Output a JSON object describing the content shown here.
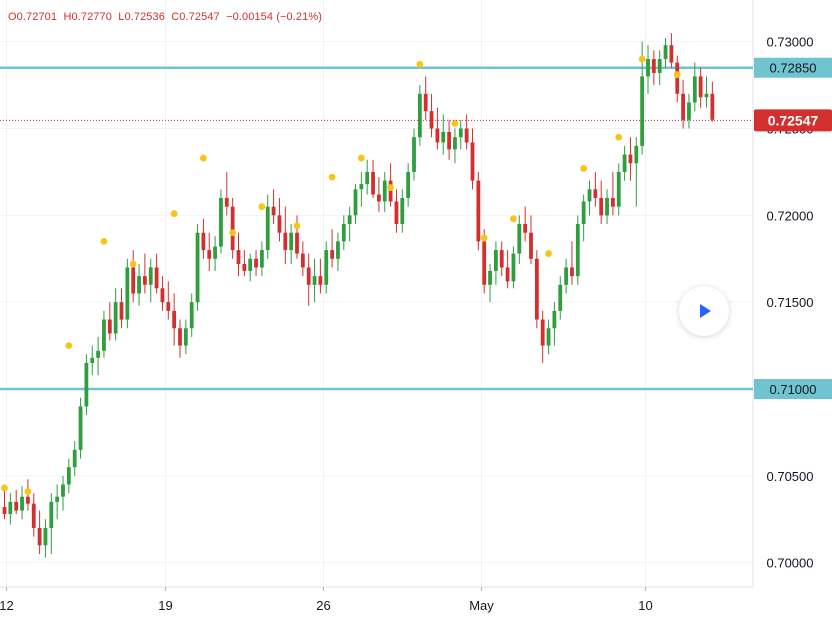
{
  "ohlc": {
    "open": "O0.72701",
    "high": "H0.72770",
    "low": "L0.72536",
    "close": "C0.72547",
    "change": "−0.00154 (−0.21%)"
  },
  "colors": {
    "up": "#2e9e3e",
    "down": "#d32f2f",
    "level_line": "#6fc4cf",
    "marker": "#f5c518",
    "price_badge": "#d32f2f",
    "grid": "#f0f3f5"
  },
  "play_button": {
    "icon": "play-icon"
  },
  "chart_data": {
    "type": "candlestick",
    "title": "",
    "x_ticks": [
      "12",
      "19",
      "26",
      "May",
      "10"
    ],
    "y_ticks": [
      "0.73000",
      "0.72500",
      "0.72000",
      "0.71500",
      "0.71000",
      "0.70500",
      "0.70000"
    ],
    "ylim": [
      0.6986,
      0.7324
    ],
    "grid": true,
    "horizontal_levels": [
      {
        "value": 0.7285,
        "label": "0.72850"
      },
      {
        "value": 0.71,
        "label": "0.71000"
      }
    ],
    "last_price": {
      "value": 0.72547,
      "label": "0.72547"
    },
    "candles": [
      [
        0.7032,
        0.7045,
        0.7025,
        0.7028
      ],
      [
        0.7028,
        0.704,
        0.7022,
        0.7035
      ],
      [
        0.7035,
        0.7042,
        0.7028,
        0.703
      ],
      [
        0.703,
        0.7044,
        0.7025,
        0.7038
      ],
      [
        0.7038,
        0.7048,
        0.703,
        0.7034
      ],
      [
        0.7034,
        0.704,
        0.7015,
        0.702
      ],
      [
        0.702,
        0.703,
        0.7005,
        0.701
      ],
      [
        0.701,
        0.7025,
        0.7003,
        0.702
      ],
      [
        0.702,
        0.704,
        0.7005,
        0.7035
      ],
      [
        0.7035,
        0.7045,
        0.7025,
        0.7038
      ],
      [
        0.7038,
        0.705,
        0.703,
        0.7045
      ],
      [
        0.7045,
        0.706,
        0.704,
        0.7055
      ],
      [
        0.7055,
        0.707,
        0.705,
        0.7065
      ],
      [
        0.7065,
        0.7095,
        0.706,
        0.709
      ],
      [
        0.709,
        0.712,
        0.7085,
        0.7115
      ],
      [
        0.7115,
        0.7125,
        0.7108,
        0.7118
      ],
      [
        0.7118,
        0.713,
        0.7108,
        0.7122
      ],
      [
        0.7122,
        0.7145,
        0.7118,
        0.714
      ],
      [
        0.714,
        0.715,
        0.7128,
        0.7132
      ],
      [
        0.7132,
        0.7158,
        0.7128,
        0.715
      ],
      [
        0.715,
        0.7158,
        0.7135,
        0.714
      ],
      [
        0.714,
        0.7175,
        0.7135,
        0.717
      ],
      [
        0.717,
        0.718,
        0.715,
        0.7155
      ],
      [
        0.7155,
        0.7172,
        0.7148,
        0.7165
      ],
      [
        0.7165,
        0.7178,
        0.7155,
        0.716
      ],
      [
        0.716,
        0.7175,
        0.715,
        0.717
      ],
      [
        0.717,
        0.7178,
        0.7155,
        0.7158
      ],
      [
        0.7158,
        0.7165,
        0.7145,
        0.715
      ],
      [
        0.715,
        0.7162,
        0.714,
        0.7145
      ],
      [
        0.7145,
        0.7155,
        0.7125,
        0.7135
      ],
      [
        0.7135,
        0.714,
        0.7118,
        0.7125
      ],
      [
        0.7125,
        0.714,
        0.712,
        0.7135
      ],
      [
        0.7135,
        0.7155,
        0.713,
        0.715
      ],
      [
        0.715,
        0.7195,
        0.7145,
        0.719
      ],
      [
        0.719,
        0.7198,
        0.7175,
        0.718
      ],
      [
        0.718,
        0.719,
        0.7168,
        0.7175
      ],
      [
        0.7175,
        0.7188,
        0.7168,
        0.7182
      ],
      [
        0.7182,
        0.7215,
        0.7178,
        0.721
      ],
      [
        0.721,
        0.7225,
        0.72,
        0.7205
      ],
      [
        0.7205,
        0.721,
        0.7175,
        0.718
      ],
      [
        0.718,
        0.719,
        0.7165,
        0.7172
      ],
      [
        0.7172,
        0.718,
        0.7165,
        0.7168
      ],
      [
        0.7168,
        0.7178,
        0.7162,
        0.7175
      ],
      [
        0.7175,
        0.718,
        0.7165,
        0.717
      ],
      [
        0.717,
        0.7185,
        0.7165,
        0.718
      ],
      [
        0.718,
        0.7212,
        0.7175,
        0.7205
      ],
      [
        0.7205,
        0.7215,
        0.7195,
        0.72
      ],
      [
        0.72,
        0.721,
        0.7185,
        0.719
      ],
      [
        0.719,
        0.7205,
        0.7172,
        0.718
      ],
      [
        0.718,
        0.7195,
        0.7172,
        0.719
      ],
      [
        0.719,
        0.72,
        0.7175,
        0.7178
      ],
      [
        0.7178,
        0.7185,
        0.7165,
        0.717
      ],
      [
        0.717,
        0.7178,
        0.7148,
        0.716
      ],
      [
        0.716,
        0.7175,
        0.715,
        0.7165
      ],
      [
        0.7165,
        0.7175,
        0.7155,
        0.716
      ],
      [
        0.716,
        0.7185,
        0.7155,
        0.718
      ],
      [
        0.718,
        0.7192,
        0.717,
        0.7175
      ],
      [
        0.7175,
        0.719,
        0.7168,
        0.7185
      ],
      [
        0.7185,
        0.72,
        0.718,
        0.7195
      ],
      [
        0.7195,
        0.7205,
        0.7185,
        0.72
      ],
      [
        0.72,
        0.7218,
        0.7195,
        0.7215
      ],
      [
        0.7215,
        0.7225,
        0.7205,
        0.7218
      ],
      [
        0.7218,
        0.7232,
        0.7212,
        0.7225
      ],
      [
        0.7225,
        0.7232,
        0.721,
        0.7212
      ],
      [
        0.7212,
        0.7222,
        0.7202,
        0.7208
      ],
      [
        0.7208,
        0.7225,
        0.7202,
        0.722
      ],
      [
        0.722,
        0.723,
        0.7205,
        0.7208
      ],
      [
        0.7208,
        0.7215,
        0.719,
        0.7195
      ],
      [
        0.7195,
        0.7215,
        0.719,
        0.721
      ],
      [
        0.721,
        0.723,
        0.7205,
        0.7225
      ],
      [
        0.7225,
        0.725,
        0.722,
        0.7245
      ],
      [
        0.7245,
        0.7275,
        0.724,
        0.727
      ],
      [
        0.727,
        0.728,
        0.7255,
        0.726
      ],
      [
        0.726,
        0.727,
        0.7245,
        0.725
      ],
      [
        0.725,
        0.7262,
        0.7238,
        0.7242
      ],
      [
        0.7242,
        0.7258,
        0.7235,
        0.7248
      ],
      [
        0.7248,
        0.7255,
        0.7232,
        0.7238
      ],
      [
        0.7238,
        0.725,
        0.723,
        0.7245
      ],
      [
        0.7245,
        0.7255,
        0.7238,
        0.725
      ],
      [
        0.725,
        0.7258,
        0.7238,
        0.7242
      ],
      [
        0.7242,
        0.725,
        0.7215,
        0.722
      ],
      [
        0.722,
        0.7225,
        0.718,
        0.7185
      ],
      [
        0.7185,
        0.7192,
        0.7155,
        0.716
      ],
      [
        0.716,
        0.7172,
        0.715,
        0.7168
      ],
      [
        0.7168,
        0.7185,
        0.716,
        0.718
      ],
      [
        0.718,
        0.7185,
        0.7165,
        0.717
      ],
      [
        0.717,
        0.718,
        0.7158,
        0.7162
      ],
      [
        0.7162,
        0.7182,
        0.7158,
        0.7178
      ],
      [
        0.7178,
        0.72,
        0.7172,
        0.7195
      ],
      [
        0.7195,
        0.7205,
        0.7185,
        0.719
      ],
      [
        0.719,
        0.72,
        0.7172,
        0.7175
      ],
      [
        0.7175,
        0.718,
        0.7135,
        0.714
      ],
      [
        0.714,
        0.7145,
        0.7115,
        0.7125
      ],
      [
        0.7125,
        0.714,
        0.712,
        0.7135
      ],
      [
        0.7135,
        0.715,
        0.7125,
        0.7145
      ],
      [
        0.7145,
        0.7165,
        0.714,
        0.716
      ],
      [
        0.716,
        0.7175,
        0.7155,
        0.717
      ],
      [
        0.717,
        0.7185,
        0.716,
        0.7165
      ],
      [
        0.7165,
        0.72,
        0.716,
        0.7195
      ],
      [
        0.7195,
        0.7212,
        0.7185,
        0.7208
      ],
      [
        0.7208,
        0.722,
        0.72,
        0.7215
      ],
      [
        0.7215,
        0.7225,
        0.7205,
        0.721
      ],
      [
        0.721,
        0.722,
        0.7195,
        0.72
      ],
      [
        0.72,
        0.7215,
        0.7195,
        0.721
      ],
      [
        0.721,
        0.7225,
        0.72,
        0.7205
      ],
      [
        0.7205,
        0.723,
        0.72,
        0.7225
      ],
      [
        0.7225,
        0.724,
        0.722,
        0.7235
      ],
      [
        0.7235,
        0.7245,
        0.722,
        0.723
      ],
      [
        0.723,
        0.7245,
        0.7205,
        0.724
      ],
      [
        0.724,
        0.73,
        0.7235,
        0.728
      ],
      [
        0.728,
        0.7298,
        0.727,
        0.729
      ],
      [
        0.729,
        0.7295,
        0.7275,
        0.7282
      ],
      [
        0.7282,
        0.7295,
        0.7275,
        0.729
      ],
      [
        0.729,
        0.7302,
        0.7285,
        0.7298
      ],
      [
        0.7298,
        0.7305,
        0.7285,
        0.7288
      ],
      [
        0.7288,
        0.7292,
        0.7265,
        0.727
      ],
      [
        0.727,
        0.7278,
        0.725,
        0.7255
      ],
      [
        0.7255,
        0.727,
        0.725,
        0.7265
      ],
      [
        0.7265,
        0.7288,
        0.726,
        0.728
      ],
      [
        0.728,
        0.7285,
        0.7262,
        0.7268
      ],
      [
        0.7268,
        0.728,
        0.7262,
        0.727
      ],
      [
        0.727,
        0.7277,
        0.7254,
        0.7255
      ]
    ],
    "markers": [
      [
        0,
        0.7043
      ],
      [
        4,
        0.7041
      ],
      [
        11,
        0.7125
      ],
      [
        17,
        0.7185
      ],
      [
        22,
        0.7172
      ],
      [
        29,
        0.7201
      ],
      [
        34,
        0.7233
      ],
      [
        39,
        0.719
      ],
      [
        44,
        0.7205
      ],
      [
        50,
        0.7194
      ],
      [
        56,
        0.7222
      ],
      [
        61,
        0.7233
      ],
      [
        66,
        0.7216
      ],
      [
        71,
        0.7287
      ],
      [
        77,
        0.7253
      ],
      [
        82,
        0.7187
      ],
      [
        87,
        0.7198
      ],
      [
        93,
        0.7178
      ],
      [
        99,
        0.7227
      ],
      [
        105,
        0.7245
      ],
      [
        109,
        0.729
      ],
      [
        115,
        0.7281
      ]
    ]
  }
}
